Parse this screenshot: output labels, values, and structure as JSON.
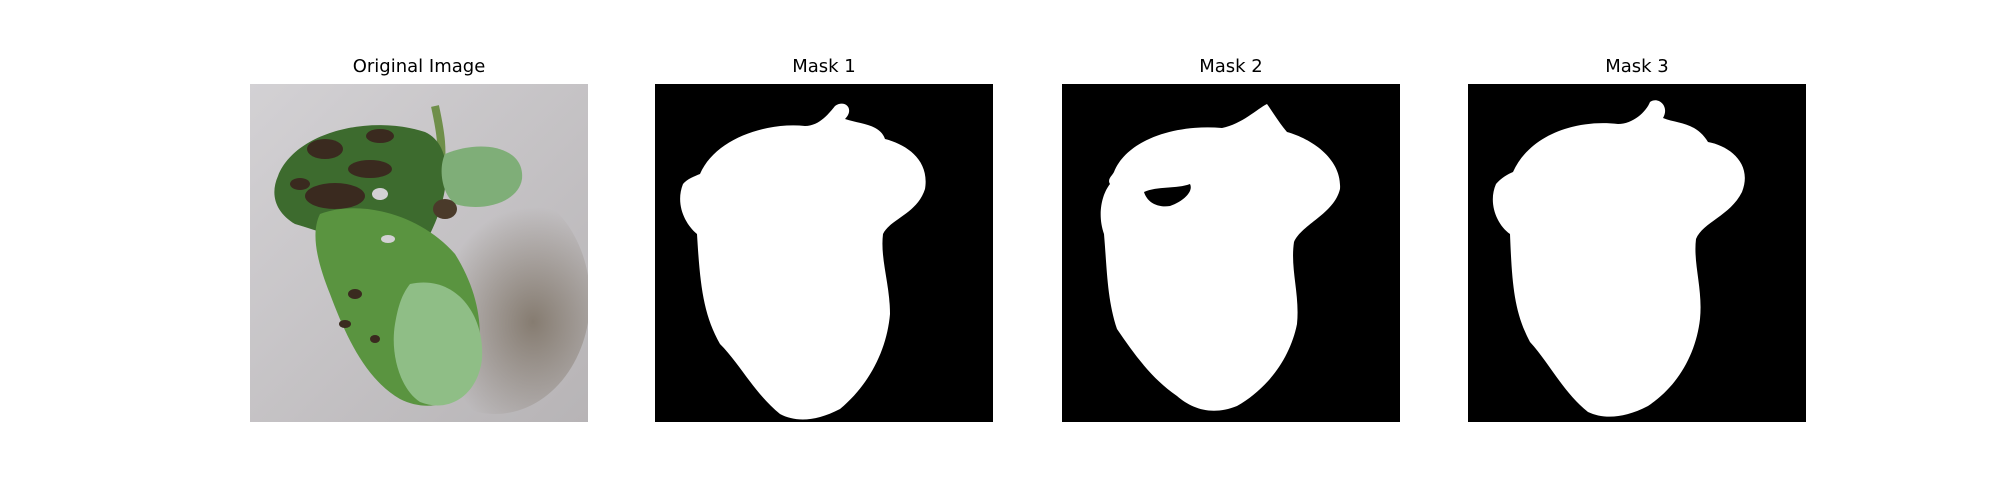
{
  "figure": {
    "panels": [
      {
        "title": "Original Image",
        "kind": "photo",
        "subject": "leaf-photo"
      },
      {
        "title": "Mask 1",
        "kind": "mask",
        "subject": "leaf-mask"
      },
      {
        "title": "Mask 2",
        "kind": "mask",
        "subject": "leaf-mask"
      },
      {
        "title": "Mask 3",
        "kind": "mask",
        "subject": "leaf-mask"
      }
    ],
    "colors": {
      "background": "#ffffff",
      "mask_bg": "#000000",
      "mask_fg": "#ffffff",
      "photo_bg": "#c8c6c9",
      "leaf_dark": "#3d6b2e",
      "leaf_mid": "#5a9440",
      "leaf_light": "#8fbe86",
      "lesion": "#3a2a1f"
    }
  }
}
